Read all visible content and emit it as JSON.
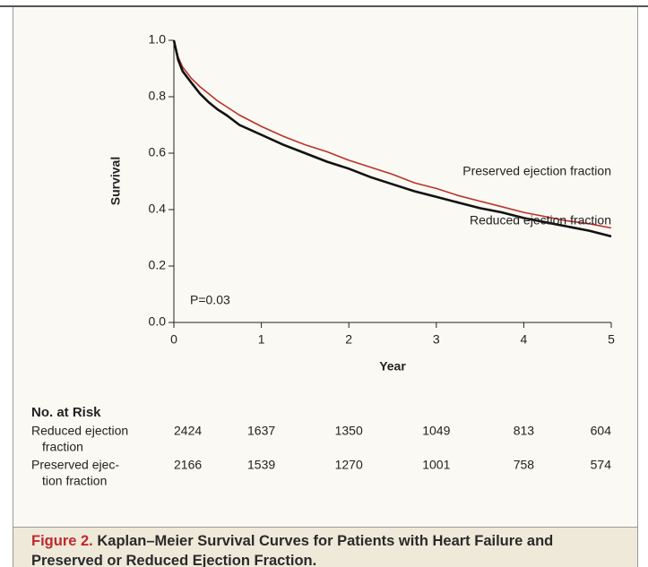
{
  "chart_data": {
    "type": "line",
    "y_label": "Survival",
    "x_label": "Year",
    "annotation": "P=0.03",
    "x": [
      0,
      0.05,
      0.1,
      0.2,
      0.3,
      0.4,
      0.5,
      0.6,
      0.75,
      1,
      1.25,
      1.5,
      1.75,
      2,
      2.25,
      2.5,
      2.75,
      3,
      3.25,
      3.5,
      3.75,
      4,
      4.25,
      4.5,
      4.75,
      5
    ],
    "series": [
      {
        "name": "Preserved ejection fraction",
        "color": "#b8332b",
        "values": [
          1.0,
          0.94,
          0.905,
          0.865,
          0.835,
          0.81,
          0.785,
          0.765,
          0.735,
          0.695,
          0.66,
          0.63,
          0.605,
          0.575,
          0.55,
          0.525,
          0.495,
          0.475,
          0.45,
          0.43,
          0.41,
          0.39,
          0.375,
          0.36,
          0.35,
          0.335
        ]
      },
      {
        "name": "Reduced ejection fraction",
        "color": "#111111",
        "values": [
          1.0,
          0.93,
          0.89,
          0.85,
          0.81,
          0.78,
          0.755,
          0.735,
          0.7,
          0.665,
          0.63,
          0.6,
          0.57,
          0.545,
          0.515,
          0.49,
          0.465,
          0.445,
          0.425,
          0.405,
          0.39,
          0.37,
          0.355,
          0.34,
          0.325,
          0.305
        ]
      }
    ],
    "xlim": [
      0,
      5
    ],
    "xticks": [
      0,
      1,
      2,
      3,
      4,
      5
    ],
    "ylim": [
      0,
      1
    ],
    "yticks": [
      {
        "value": 0,
        "label": "0.0"
      },
      0.2,
      0.4,
      0.6,
      0.8,
      {
        "value": 1,
        "label": "1.0"
      }
    ]
  },
  "risk_table": {
    "title": "No. at Risk",
    "rows": [
      {
        "label": [
          "Reduced ejection",
          "fraction"
        ],
        "counts": [
          2424,
          1637,
          1350,
          1049,
          813,
          604
        ]
      },
      {
        "label": [
          "Preserved ejec-",
          "tion fraction"
        ],
        "counts": [
          2166,
          1539,
          1270,
          1001,
          758,
          574
        ]
      }
    ]
  },
  "caption": {
    "label": "Figure 2.",
    "text": "Kaplan–Meier Survival Curves for Patients with Heart Failure and Preserved or Reduced Ejection Fraction."
  }
}
